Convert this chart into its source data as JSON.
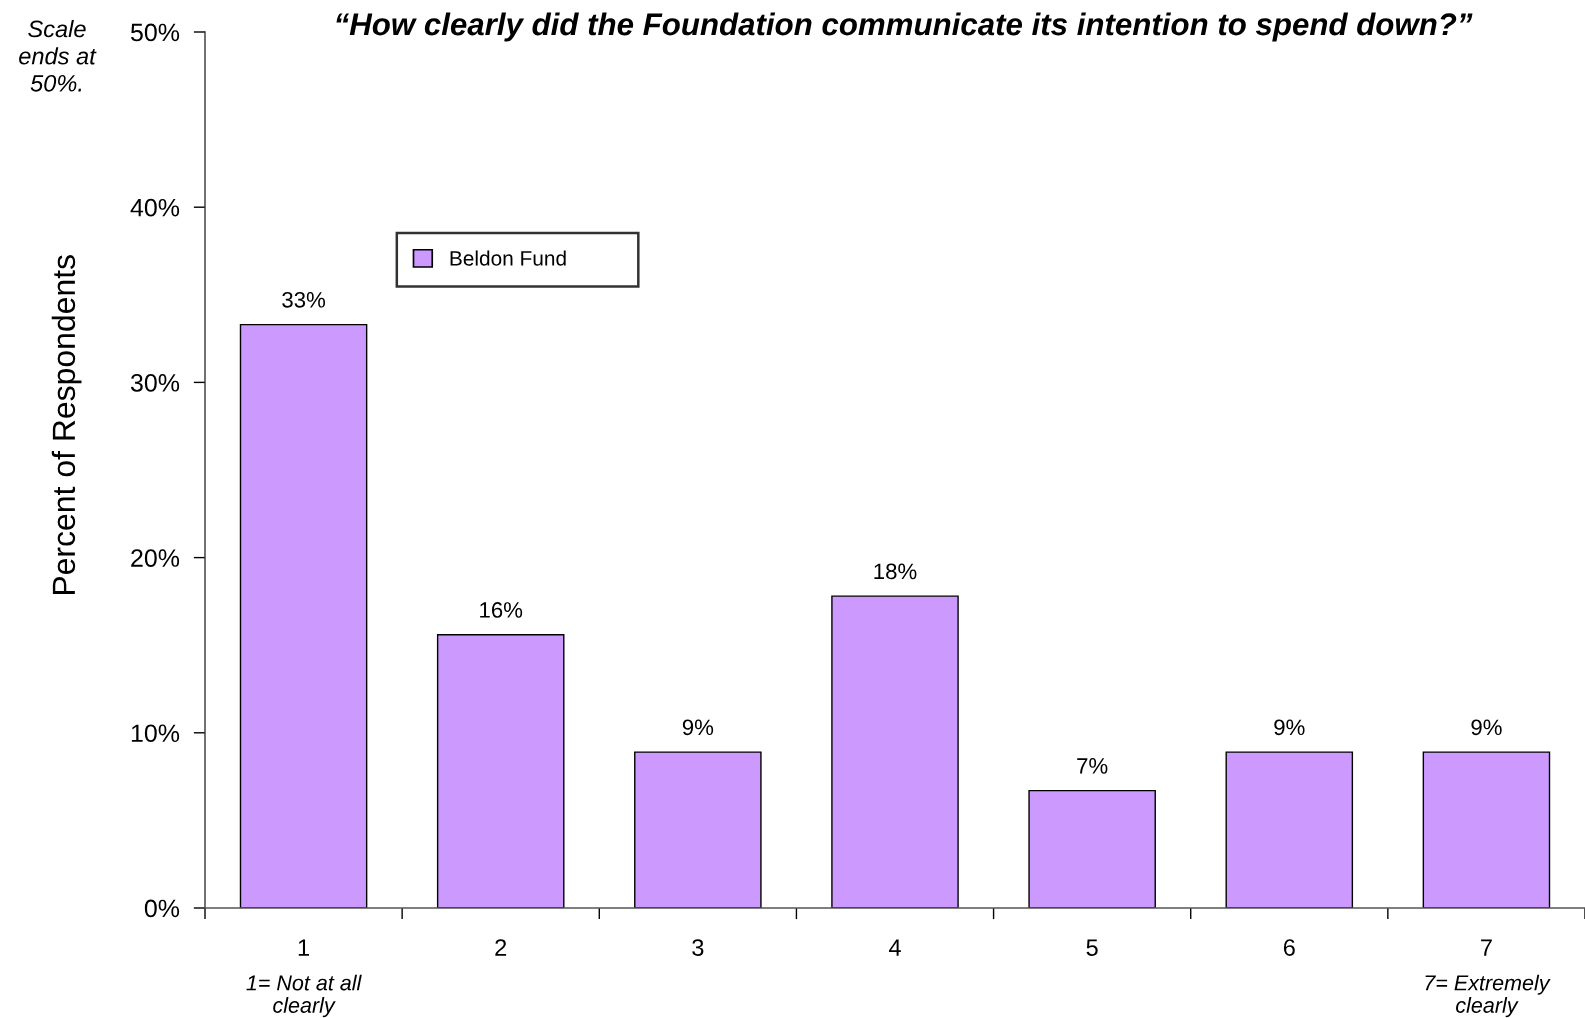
{
  "chart_data": {
    "type": "bar",
    "title": "“How clearly did the Foundation communicate its intention to spend down?”",
    "ylabel": "Percent of Respondents",
    "categories": [
      "1",
      "2",
      "3",
      "4",
      "5",
      "6",
      "7"
    ],
    "series": [
      {
        "name": "Beldon Fund",
        "color": "#cc99ff",
        "values": [
          33.3,
          15.6,
          8.9,
          17.8,
          6.7,
          8.9,
          8.9
        ],
        "value_labels": [
          "33%",
          "16%",
          "9%",
          "18%",
          "7%",
          "9%",
          "9%"
        ]
      }
    ],
    "ylim": [
      0,
      50
    ],
    "yticks": [
      {
        "value": 0,
        "label": "0%"
      },
      {
        "value": 10,
        "label": "10%"
      },
      {
        "value": 20,
        "label": "20%"
      },
      {
        "value": 30,
        "label": "30%"
      },
      {
        "value": 40,
        "label": "40%"
      },
      {
        "value": 50,
        "label": "50%"
      }
    ],
    "annotations": [
      "Scale\nends at\n50%.",
      "1= Not at all\nclearly",
      "7= Extremely\nclearly"
    ],
    "legend": "top left",
    "grid": false
  }
}
